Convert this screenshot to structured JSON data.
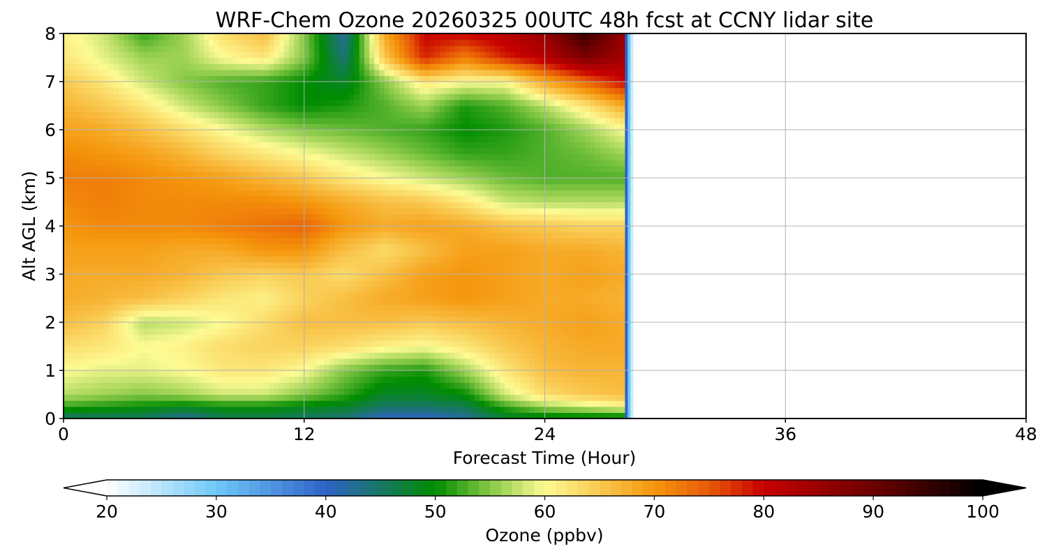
{
  "chart_data": {
    "type": "heatmap",
    "title": "WRF-Chem Ozone  20260325 00UTC 48h fcst at CCNY lidar site",
    "xlabel": "Forecast Time (Hour)",
    "ylabel": "Alt AGL (km)",
    "xlim": [
      0,
      48
    ],
    "ylim": [
      0,
      8
    ],
    "xticks": [
      0,
      12,
      24,
      36,
      48
    ],
    "yticks": [
      0,
      1,
      2,
      3,
      4,
      5,
      6,
      7,
      8
    ],
    "grid": true,
    "data_extent_hours": [
      0,
      28
    ],
    "x": [
      0,
      2,
      4,
      6,
      8,
      10,
      12,
      14,
      16,
      18,
      20,
      22,
      24,
      26,
      28
    ],
    "y": [
      0,
      0.25,
      0.5,
      1,
      1.5,
      2,
      2.5,
      3,
      3.5,
      4,
      4.5,
      5,
      5.5,
      6,
      6.5,
      7,
      7.5,
      8
    ],
    "z": [
      [
        44,
        45,
        45,
        42,
        46,
        46,
        45,
        44,
        40,
        40,
        42,
        47,
        48,
        48,
        48
      ],
      [
        52,
        51,
        50,
        49,
        50,
        50,
        49,
        48,
        45,
        45,
        46,
        52,
        56,
        58,
        60
      ],
      [
        57,
        56,
        55,
        56,
        58,
        58,
        55,
        52,
        48,
        48,
        50,
        58,
        63,
        65,
        66
      ],
      [
        60,
        59,
        59,
        60,
        62,
        62,
        60,
        55,
        52,
        51,
        56,
        62,
        66,
        67,
        67
      ],
      [
        63,
        62,
        60,
        61,
        63,
        64,
        64,
        63,
        61,
        60,
        62,
        65,
        67,
        68,
        68
      ],
      [
        66,
        64,
        57,
        58,
        60,
        63,
        66,
        66,
        66,
        65,
        66,
        67,
        68,
        69,
        68
      ],
      [
        68,
        67,
        66,
        64,
        62,
        61,
        64,
        66,
        68,
        69,
        70,
        69,
        68,
        68,
        67
      ],
      [
        68,
        68,
        68,
        67,
        65,
        64,
        65,
        63,
        66,
        69,
        70,
        69,
        68,
        69,
        68
      ],
      [
        69,
        69,
        69,
        68,
        68,
        70,
        70,
        66,
        63,
        66,
        69,
        69,
        68,
        68,
        67
      ],
      [
        70,
        71,
        71,
        71,
        72,
        73,
        74,
        70,
        68,
        69,
        68,
        66,
        65,
        64,
        64
      ],
      [
        71,
        72,
        71,
        71,
        71,
        71,
        70,
        68,
        66,
        65,
        62,
        58,
        57,
        57,
        57
      ],
      [
        72,
        72,
        71,
        70,
        69,
        67,
        65,
        62,
        60,
        58,
        56,
        54,
        53,
        53,
        53
      ],
      [
        71,
        70,
        69,
        67,
        64,
        62,
        60,
        58,
        56,
        54,
        52,
        52,
        53,
        54,
        56
      ],
      [
        69,
        68,
        66,
        63,
        60,
        57,
        55,
        54,
        53,
        52,
        50,
        51,
        53,
        56,
        60
      ],
      [
        67,
        65,
        62,
        58,
        55,
        52,
        50,
        51,
        53,
        56,
        51,
        53,
        57,
        62,
        68
      ],
      [
        65,
        62,
        58,
        55,
        53,
        52,
        50,
        48,
        55,
        62,
        60,
        60,
        68,
        74,
        80
      ],
      [
        62,
        59,
        56,
        56,
        60,
        62,
        55,
        44,
        65,
        78,
        72,
        78,
        82,
        88,
        84
      ],
      [
        61,
        58,
        52,
        56,
        63,
        66,
        55,
        42,
        68,
        80,
        80,
        82,
        85,
        95,
        85
      ]
    ],
    "colorbar": {
      "label": "Ozone  (ppbv)",
      "min": 20,
      "max": 100,
      "ticks": [
        20,
        30,
        40,
        50,
        60,
        70,
        80,
        90,
        100
      ],
      "extend": "both",
      "stops": [
        {
          "v": 20,
          "c": "#ffffff"
        },
        {
          "v": 30,
          "c": "#6fc8f8"
        },
        {
          "v": 40,
          "c": "#2f62c8"
        },
        {
          "v": 50,
          "c": "#008c00"
        },
        {
          "v": 55,
          "c": "#86c846"
        },
        {
          "v": 60,
          "c": "#fdfb94"
        },
        {
          "v": 70,
          "c": "#f5960c"
        },
        {
          "v": 75,
          "c": "#e75a06"
        },
        {
          "v": 80,
          "c": "#c80000"
        },
        {
          "v": 90,
          "c": "#6c0000"
        },
        {
          "v": 100,
          "c": "#000000"
        }
      ]
    }
  }
}
